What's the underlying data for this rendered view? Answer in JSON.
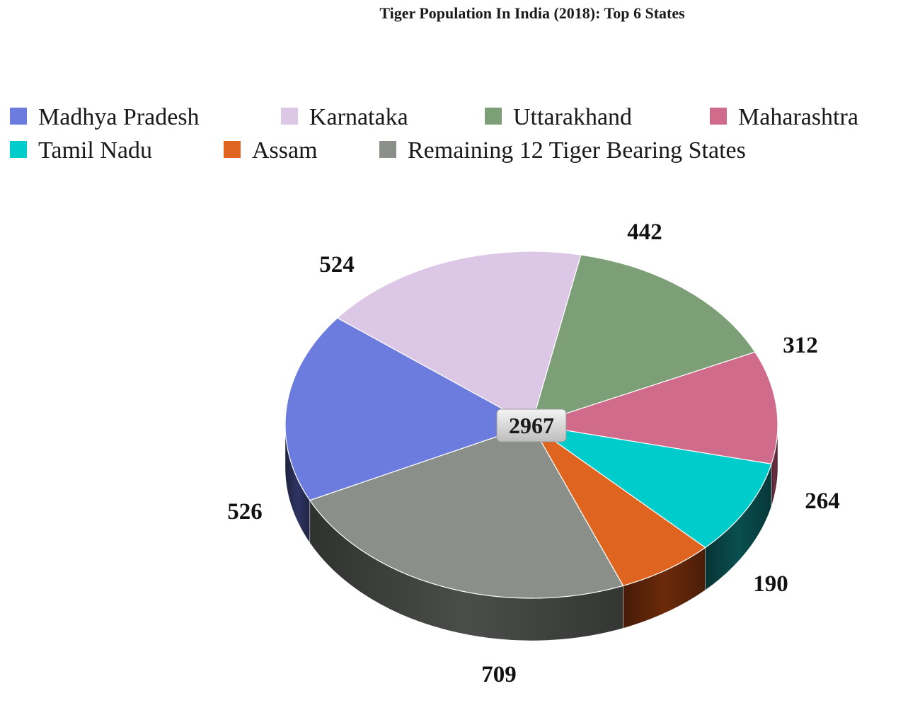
{
  "chart_data": {
    "type": "pie",
    "title": "Tiger Population In India (2018): Top 6 States",
    "total_label": "2967",
    "legend_position": "top",
    "three_d": true,
    "slices": [
      {
        "name": "Madhya Pradesh",
        "value": 526,
        "label": "526",
        "color": "#6b7bde",
        "side_color": "#2e3462"
      },
      {
        "name": "Karnataka",
        "value": 524,
        "label": "524",
        "color": "#dcc7e6",
        "side_color": "#8e7f96"
      },
      {
        "name": "Uttarakhand",
        "value": 442,
        "label": "442",
        "color": "#7d9f77",
        "side_color": "#3e5a3a"
      },
      {
        "name": "Maharashtra",
        "value": 312,
        "label": "312",
        "color": "#d06b8b",
        "side_color": "#6e2f44"
      },
      {
        "name": "Tamil Nadu",
        "value": 264,
        "label": "264",
        "color": "#00cccc",
        "side_color": "#0a4f50"
      },
      {
        "name": "Assam",
        "value": 190,
        "label": "190",
        "color": "#df6420",
        "side_color": "#6b2a0a"
      },
      {
        "name": "Remaining 12 Tiger Bearing States",
        "value": 709,
        "label": "709",
        "color": "#8b8f8a",
        "side_color": "#4a4d4a"
      }
    ]
  }
}
